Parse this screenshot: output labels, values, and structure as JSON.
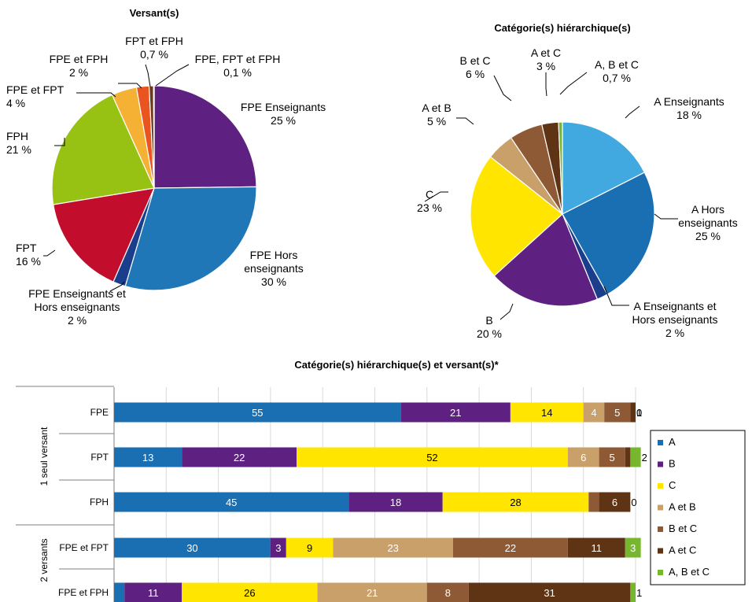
{
  "chart_data": [
    {
      "type": "pie",
      "title": "Versant(s)",
      "slices": [
        {
          "label": "FPE Enseignants",
          "value": 25,
          "value_label": "25 %",
          "color": "#5E2181"
        },
        {
          "label": "FPE Hors enseignants",
          "value": 30,
          "value_label": "30 %",
          "color": "#1F77B8"
        },
        {
          "label": "FPE Enseignants et Hors enseignants",
          "value": 2,
          "value_label": "2 %",
          "color": "#1A3D8C"
        },
        {
          "label": "FPT",
          "value": 16,
          "value_label": "16 %",
          "color": "#C20E2C"
        },
        {
          "label": "FPH",
          "value": 21,
          "value_label": "21 %",
          "color": "#97C214"
        },
        {
          "label": "FPE et FPT",
          "value": 4,
          "value_label": "4 %",
          "color": "#F5B133"
        },
        {
          "label": "FPE et FPH",
          "value": 2,
          "value_label": "2 %",
          "color": "#E85520"
        },
        {
          "label": "FPT et FPH",
          "value": 0.7,
          "value_label": "0,7 %",
          "color": "#6E3A1E"
        },
        {
          "label": "FPE, FPT et FPH",
          "value": 0.1,
          "value_label": "0,1 %",
          "color": "#A0A0A0"
        }
      ]
    },
    {
      "type": "pie",
      "title": "Catégorie(s) hiérarchique(s)",
      "slices": [
        {
          "label": "A Enseignants",
          "value": 18,
          "value_label": "18 %",
          "color": "#41A9DF"
        },
        {
          "label": "A Hors enseignants",
          "value": 25,
          "value_label": "25 %",
          "color": "#1A6FB3"
        },
        {
          "label": "A Enseignants et Hors enseignants",
          "value": 2,
          "value_label": "2 %",
          "color": "#1A3D8C"
        },
        {
          "label": "B",
          "value": 20,
          "value_label": "20 %",
          "color": "#5E2181"
        },
        {
          "label": "C",
          "value": 23,
          "value_label": "23 %",
          "color": "#FFE500"
        },
        {
          "label": "A et B",
          "value": 5,
          "value_label": "5 %",
          "color": "#C9A06A"
        },
        {
          "label": "B et C",
          "value": 6,
          "value_label": "6 %",
          "color": "#8E5A35"
        },
        {
          "label": "A et C",
          "value": 3,
          "value_label": "3 %",
          "color": "#5E3414"
        },
        {
          "label": "A, B et C",
          "value": 0.7,
          "value_label": "0,7 %",
          "color": "#77B72E"
        }
      ]
    },
    {
      "type": "bar",
      "orientation": "horizontal",
      "stacked": true,
      "title": "Catégorie(s) hiérarchique(s) et versant(s)*",
      "categories": [
        "FPE",
        "FPT",
        "FPH",
        "FPE et FPT",
        "FPE et FPH"
      ],
      "groups": [
        {
          "label": "1 seul versant",
          "categories": [
            "FPE",
            "FPT",
            "FPH"
          ]
        },
        {
          "label": "2 versants",
          "categories": [
            "FPE et FPT",
            "FPE et FPH"
          ]
        }
      ],
      "xlim": [
        0,
        100
      ],
      "grid": true,
      "legend_position": "right",
      "series": [
        {
          "name": "A",
          "color": "#1A6FB3",
          "values": [
            55,
            13,
            45,
            30,
            2
          ]
        },
        {
          "name": "B",
          "color": "#5E2181",
          "values": [
            21,
            22,
            18,
            3,
            11
          ]
        },
        {
          "name": "C",
          "color": "#FFE500",
          "values": [
            14,
            52,
            28,
            9,
            26
          ]
        },
        {
          "name": "A et B",
          "color": "#C9A06A",
          "values": [
            4,
            6,
            0,
            23,
            21
          ]
        },
        {
          "name": "B et C",
          "color": "#8E5A35",
          "values": [
            5,
            5,
            2,
            22,
            8
          ]
        },
        {
          "name": "A et C",
          "color": "#5E3414",
          "values": [
            1,
            1,
            6,
            11,
            31
          ]
        },
        {
          "name": "A, B et C",
          "color": "#77B72E",
          "values": [
            0,
            2,
            0,
            3,
            1
          ]
        }
      ]
    }
  ]
}
